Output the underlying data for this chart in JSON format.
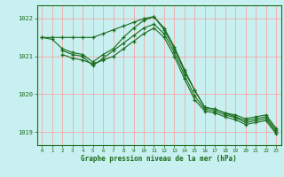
{
  "title": "Graphe pression niveau de la mer (hPa)",
  "bg_color": "#c8f0f0",
  "grid_color": "#b8d8b8",
  "line_color": "#1a6b1a",
  "xlim": [
    -0.5,
    23.5
  ],
  "ylim": [
    1018.65,
    1022.35
  ],
  "yticks": [
    1019,
    1020,
    1021,
    1022
  ],
  "xticks": [
    0,
    1,
    2,
    3,
    4,
    5,
    6,
    7,
    8,
    9,
    10,
    11,
    12,
    13,
    14,
    15,
    16,
    17,
    18,
    19,
    20,
    21,
    22,
    23
  ],
  "series": [
    {
      "x": [
        0,
        1,
        2,
        3,
        4,
        5,
        6,
        7,
        8,
        9,
        10,
        11,
        12,
        13,
        14,
        15,
        16,
        17,
        18,
        19,
        20,
        21,
        22,
        23
      ],
      "y": [
        1021.5,
        1021.5,
        1021.5,
        1021.5,
        1021.5,
        1021.5,
        1021.6,
        1021.7,
        1021.8,
        1021.9,
        1022.0,
        1022.05,
        1021.7,
        1021.2,
        1020.6,
        1020.1,
        1019.65,
        1019.6,
        1019.5,
        1019.45,
        1019.35,
        1019.4,
        1019.45,
        1019.1
      ]
    },
    {
      "x": [
        0,
        1,
        2,
        3,
        4,
        5,
        6,
        7,
        8,
        9,
        10,
        11,
        12,
        13,
        14,
        15,
        16,
        17,
        18,
        19,
        20,
        21,
        22,
        23
      ],
      "y": [
        1021.5,
        1021.45,
        1021.2,
        1021.1,
        1021.05,
        1020.85,
        1021.05,
        1021.2,
        1021.5,
        1021.75,
        1021.95,
        1022.05,
        1021.75,
        1021.25,
        1020.65,
        1020.1,
        1019.65,
        1019.6,
        1019.5,
        1019.4,
        1019.3,
        1019.35,
        1019.4,
        1019.05
      ]
    },
    {
      "x": [
        2,
        3,
        4,
        5,
        6,
        7,
        8,
        9,
        10,
        11,
        12,
        13,
        14,
        15,
        16,
        17,
        18,
        19,
        20,
        21,
        22,
        23
      ],
      "y": [
        1021.15,
        1021.05,
        1021.0,
        1020.75,
        1020.95,
        1021.15,
        1021.35,
        1021.55,
        1021.75,
        1021.85,
        1021.6,
        1021.1,
        1020.5,
        1019.95,
        1019.6,
        1019.55,
        1019.45,
        1019.38,
        1019.25,
        1019.3,
        1019.35,
        1019.0
      ]
    },
    {
      "x": [
        2,
        3,
        4,
        5,
        6,
        7,
        8,
        9,
        10,
        11,
        12,
        13,
        14,
        15,
        16,
        17,
        18,
        19,
        20,
        21,
        22,
        23
      ],
      "y": [
        1021.05,
        1020.95,
        1020.9,
        1020.8,
        1020.9,
        1021.0,
        1021.2,
        1021.4,
        1021.6,
        1021.75,
        1021.5,
        1021.0,
        1020.4,
        1019.85,
        1019.55,
        1019.5,
        1019.4,
        1019.32,
        1019.2,
        1019.25,
        1019.3,
        1018.95
      ]
    }
  ]
}
